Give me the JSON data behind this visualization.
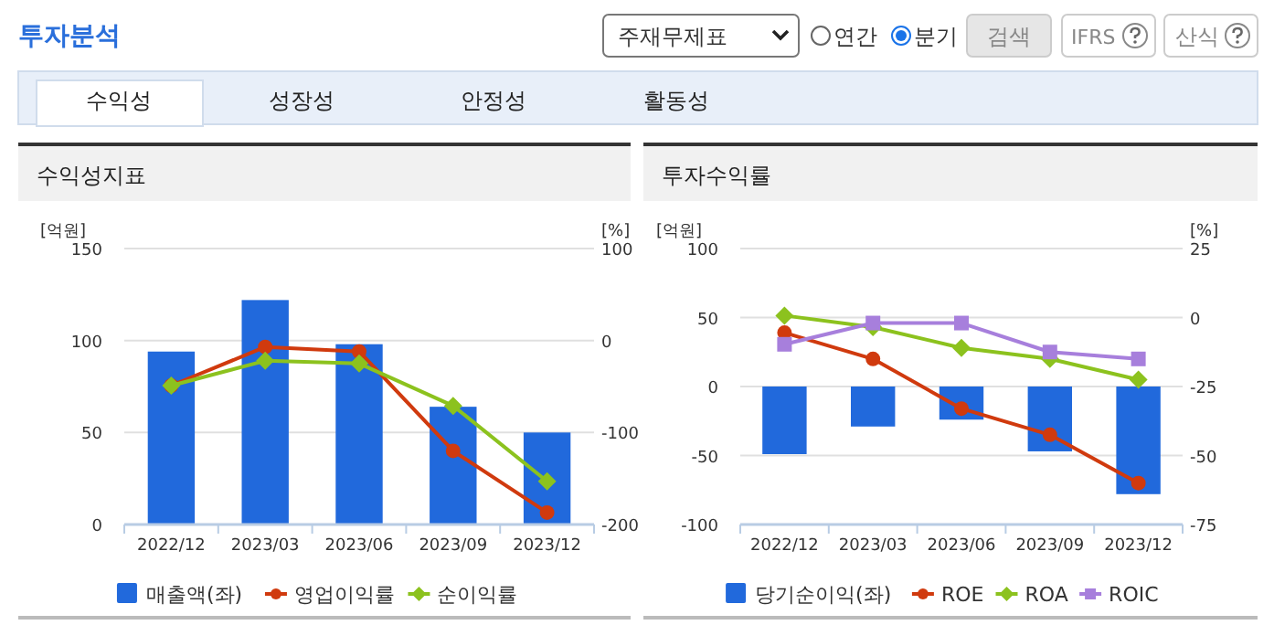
{
  "chart_data": [
    {
      "type": "other",
      "title": "투자분석",
      "annotations": [
        "주재무제표",
        "연간",
        "분기",
        "검색",
        "IFRS",
        "산식",
        "수익성",
        "성장성",
        "안정성",
        "활동성"
      ]
    },
    {
      "type": "bar",
      "title": "수익성지표",
      "ylabel": "[억원]",
      "y2label": "[%]",
      "categories": [
        "2022/12",
        "2023/03",
        "2023/06",
        "2023/09",
        "2023/12"
      ],
      "ylim": [
        0,
        150
      ],
      "yticks": [
        0,
        50,
        100,
        150
      ],
      "y2lim": [
        -200,
        100
      ],
      "y2ticks": [
        -200,
        -100,
        0,
        100
      ],
      "grid": "y",
      "legend": "bottom",
      "series": [
        {
          "name": "매출액(좌)",
          "type": "bar",
          "color": "#2169dc",
          "values": [
            94,
            122,
            98,
            64,
            50
          ]
        },
        {
          "name": "영업이익률",
          "type": "line",
          "axis": "y2",
          "marker": "circle",
          "color": "#d03a0e",
          "values": [
            -49,
            -7,
            -12,
            -120,
            -187
          ]
        },
        {
          "name": "순이익률",
          "type": "line",
          "axis": "y2",
          "marker": "diamond",
          "color": "#8cc21e",
          "values": [
            -49,
            -22,
            -25,
            -71,
            -153
          ]
        }
      ]
    },
    {
      "type": "bar",
      "title": "투자수익률",
      "ylabel": "[억원]",
      "y2label": "[%]",
      "categories": [
        "2022/12",
        "2023/03",
        "2023/06",
        "2023/09",
        "2023/12"
      ],
      "ylim": [
        -100,
        100
      ],
      "yticks": [
        -100,
        -50,
        0,
        50,
        100
      ],
      "y2lim": [
        -75,
        25
      ],
      "y2ticks": [
        -75,
        -50,
        -25,
        0,
        25
      ],
      "grid": "y",
      "legend": "bottom",
      "series": [
        {
          "name": "당기순이익(좌)",
          "type": "bar",
          "color": "#2169dc",
          "values": [
            -49,
            -29,
            -24,
            -47,
            -78
          ]
        },
        {
          "name": "ROE",
          "type": "line",
          "axis": "y2",
          "marker": "circle",
          "color": "#d03a0e",
          "values": [
            -5.5,
            -15,
            -33,
            -42.5,
            -60
          ]
        },
        {
          "name": "ROA",
          "type": "line",
          "axis": "y2",
          "marker": "diamond",
          "color": "#8cc21e",
          "values": [
            0.7,
            -3.5,
            -11,
            -15,
            -22.5
          ]
        },
        {
          "name": "ROIC",
          "type": "line",
          "axis": "y2",
          "marker": "square",
          "color": "#a77fdc",
          "values": [
            -9.7,
            -2,
            -2,
            -12.5,
            -15
          ]
        }
      ]
    }
  ]
}
